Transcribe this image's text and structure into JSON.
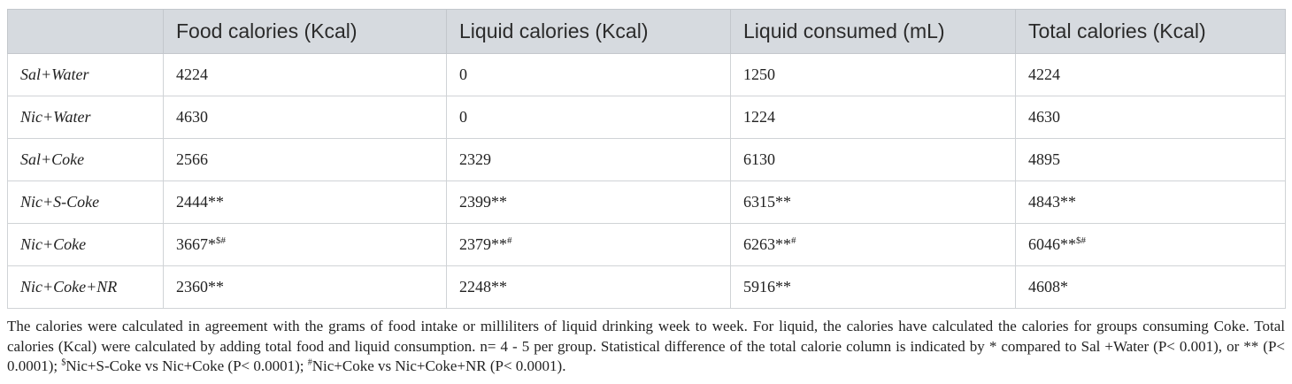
{
  "table": {
    "headers": [
      "",
      "Food calories (Kcal)",
      "Liquid calories (Kcal)",
      "Liquid consumed (mL)",
      "Total calories (Kcal)"
    ],
    "rows": [
      {
        "label": "Sal+Water",
        "cells": [
          {
            "value": "4224",
            "sup": ""
          },
          {
            "value": "0",
            "sup": ""
          },
          {
            "value": "1250",
            "sup": ""
          },
          {
            "value": "4224",
            "sup": ""
          }
        ]
      },
      {
        "label": "Nic+Water",
        "cells": [
          {
            "value": "4630",
            "sup": ""
          },
          {
            "value": "0",
            "sup": ""
          },
          {
            "value": "1224",
            "sup": ""
          },
          {
            "value": "4630",
            "sup": ""
          }
        ]
      },
      {
        "label": "Sal+Coke",
        "cells": [
          {
            "value": "2566",
            "sup": ""
          },
          {
            "value": "2329",
            "sup": ""
          },
          {
            "value": "6130",
            "sup": ""
          },
          {
            "value": "4895",
            "sup": ""
          }
        ]
      },
      {
        "label": "Nic+S-Coke",
        "cells": [
          {
            "value": "2444**",
            "sup": ""
          },
          {
            "value": "2399**",
            "sup": ""
          },
          {
            "value": "6315**",
            "sup": ""
          },
          {
            "value": "4843**",
            "sup": ""
          }
        ]
      },
      {
        "label": "Nic+Coke",
        "cells": [
          {
            "value": "3667*",
            "sup": "$#"
          },
          {
            "value": "2379**",
            "sup": "#"
          },
          {
            "value": "6263**",
            "sup": "#"
          },
          {
            "value": "6046**",
            "sup": "$#"
          }
        ]
      },
      {
        "label": "Nic+Coke+NR",
        "cells": [
          {
            "value": "2360**",
            "sup": ""
          },
          {
            "value": "2248**",
            "sup": ""
          },
          {
            "value": "5916**",
            "sup": ""
          },
          {
            "value": "4608*",
            "sup": ""
          }
        ]
      }
    ]
  },
  "footnote": {
    "part1": "The calories were calculated in agreement with the grams of food intake or milliliters of liquid drinking week to week. For liquid, the calories have calculated the calories for groups consuming Coke. Total calories (Kcal) were calculated by adding total food and liquid consumption. n= 4 - 5 per group. Statistical difference of the total calorie column is indicated by * compared to Sal +Water (P< 0.001), or ** (P< 0.0001); ",
    "sup1": "$",
    "part2": "Nic+S-Coke vs Nic+Coke (P< 0.0001); ",
    "sup2": "#",
    "part3": "Nic+Coke vs Nic+Coke+NR (P< 0.0001)."
  }
}
